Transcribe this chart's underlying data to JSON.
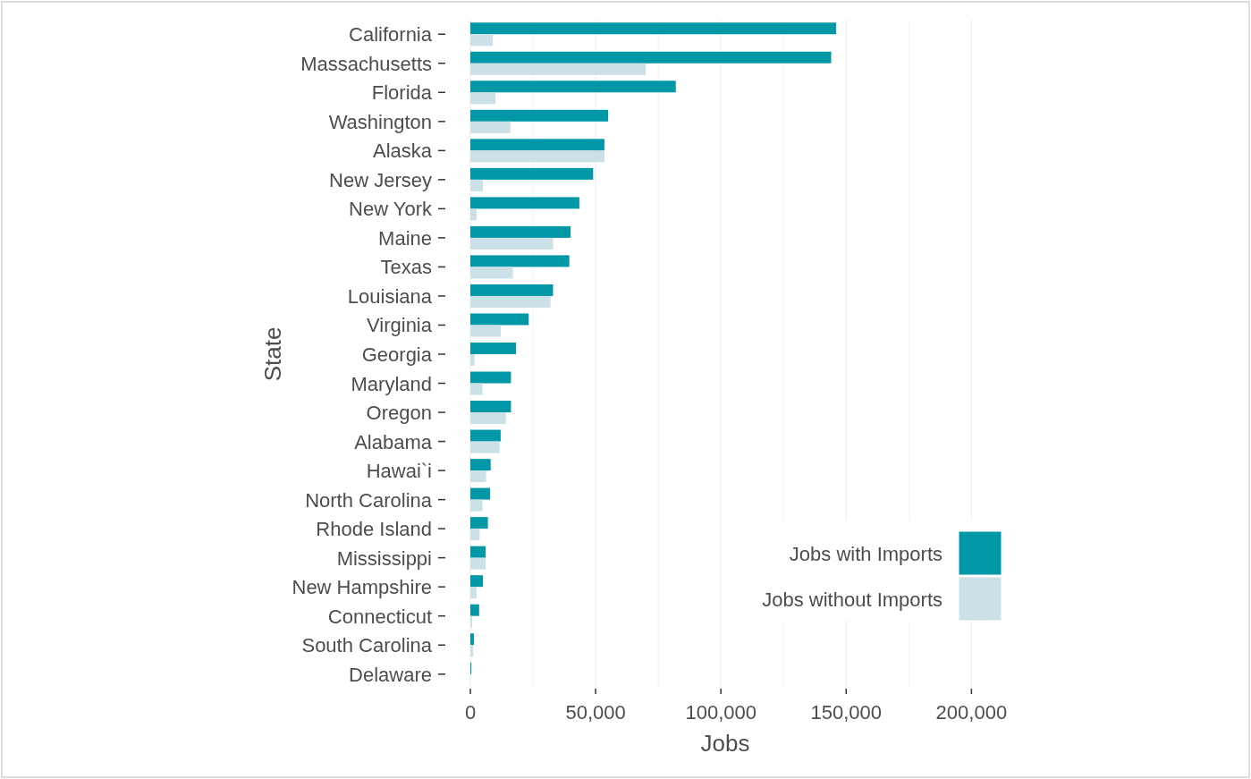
{
  "chart_data": {
    "type": "bar",
    "orientation": "horizontal",
    "xlabel": "Jobs",
    "ylabel": "State",
    "categories": [
      "California",
      "Massachusetts",
      "Florida",
      "Washington",
      "Alaska",
      "New Jersey",
      "New York",
      "Maine",
      "Texas",
      "Louisiana",
      "Virginia",
      "Georgia",
      "Maryland",
      "Oregon",
      "Alabama",
      "Hawai`i",
      "North Carolina",
      "Rhode Island",
      "Mississippi",
      "New Hampshire",
      "Connecticut",
      "South Carolina",
      "Delaware"
    ],
    "series": [
      {
        "name": "Jobs with Imports",
        "color": "#0097a7",
        "values": [
          146000,
          144000,
          82000,
          55000,
          53500,
          49000,
          43500,
          40000,
          39500,
          33000,
          23300,
          18200,
          16200,
          16200,
          12100,
          8100,
          7900,
          7000,
          6100,
          5000,
          3500,
          1400,
          400
        ]
      },
      {
        "name": "Jobs without Imports",
        "color": "#cbe1e7",
        "values": [
          9000,
          70000,
          10000,
          16000,
          53500,
          5000,
          2500,
          33000,
          17000,
          32000,
          12100,
          1700,
          4800,
          14200,
          11700,
          6300,
          4800,
          3700,
          6100,
          2500,
          700,
          1100,
          null
        ]
      }
    ],
    "xlim": [
      0,
      212000
    ],
    "xticks": [
      0,
      {
        "value": 25000,
        "label": null
      },
      {
        "value": 50000,
        "label": "50,000"
      },
      {
        "value": 75000,
        "label": null
      },
      {
        "value": 100000,
        "label": "100,000"
      },
      {
        "value": 125000,
        "label": null
      },
      {
        "value": 150000,
        "label": "150,000"
      },
      {
        "value": 175000,
        "label": null
      },
      {
        "value": 200000,
        "label": "200,000"
      }
    ],
    "grid": "x",
    "legend": "bottom right"
  }
}
